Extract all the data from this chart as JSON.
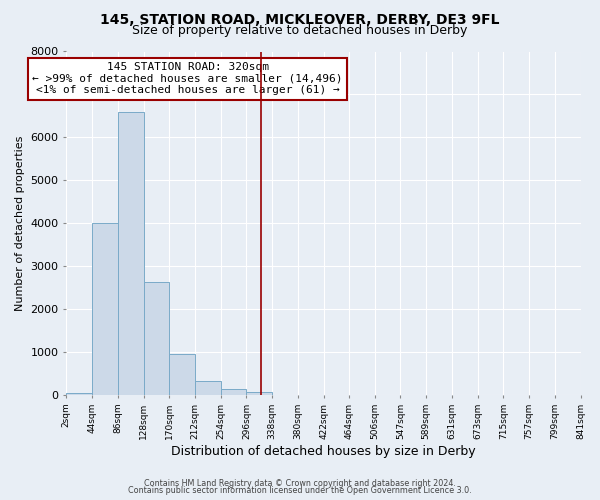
{
  "title1": "145, STATION ROAD, MICKLEOVER, DERBY, DE3 9FL",
  "title2": "Size of property relative to detached houses in Derby",
  "xlabel": "Distribution of detached houses by size in Derby",
  "ylabel": "Number of detached properties",
  "footer1": "Contains HM Land Registry data © Crown copyright and database right 2024.",
  "footer2": "Contains public sector information licensed under the Open Government Licence 3.0.",
  "bin_edges": [
    2,
    44,
    86,
    128,
    170,
    212,
    254,
    296,
    338,
    380,
    422,
    464,
    506,
    547,
    589,
    631,
    673,
    715,
    757,
    799,
    841
  ],
  "bin_counts": [
    50,
    4000,
    6600,
    2620,
    960,
    330,
    130,
    60,
    0,
    0,
    0,
    0,
    0,
    0,
    0,
    0,
    0,
    0,
    0,
    0
  ],
  "bar_color": "#ccd9e8",
  "bar_edge_color": "#7aaac8",
  "vline_x": 320,
  "vline_color": "#990000",
  "ylim": [
    0,
    8000
  ],
  "yticks": [
    0,
    1000,
    2000,
    3000,
    4000,
    5000,
    6000,
    7000,
    8000
  ],
  "annotation_line1": "145 STATION ROAD: 320sqm",
  "annotation_line2": "← >99% of detached houses are smaller (14,496)",
  "annotation_line3": "<1% of semi-detached houses are larger (61) →",
  "annotation_box_edgecolor": "#990000",
  "annotation_fill_color": "#ffffff",
  "background_color": "#e8eef5",
  "grid_color": "#ffffff",
  "tick_labels": [
    "2sqm",
    "44sqm",
    "86sqm",
    "128sqm",
    "170sqm",
    "212sqm",
    "254sqm",
    "296sqm",
    "338sqm",
    "380sqm",
    "422sqm",
    "464sqm",
    "506sqm",
    "547sqm",
    "589sqm",
    "631sqm",
    "673sqm",
    "715sqm",
    "757sqm",
    "799sqm",
    "841sqm"
  ],
  "title1_fontsize": 10,
  "title2_fontsize": 9,
  "xlabel_fontsize": 9,
  "ylabel_fontsize": 8,
  "xtick_fontsize": 6.5,
  "ytick_fontsize": 8,
  "footer_fontsize": 5.8,
  "ann_fontsize": 8
}
